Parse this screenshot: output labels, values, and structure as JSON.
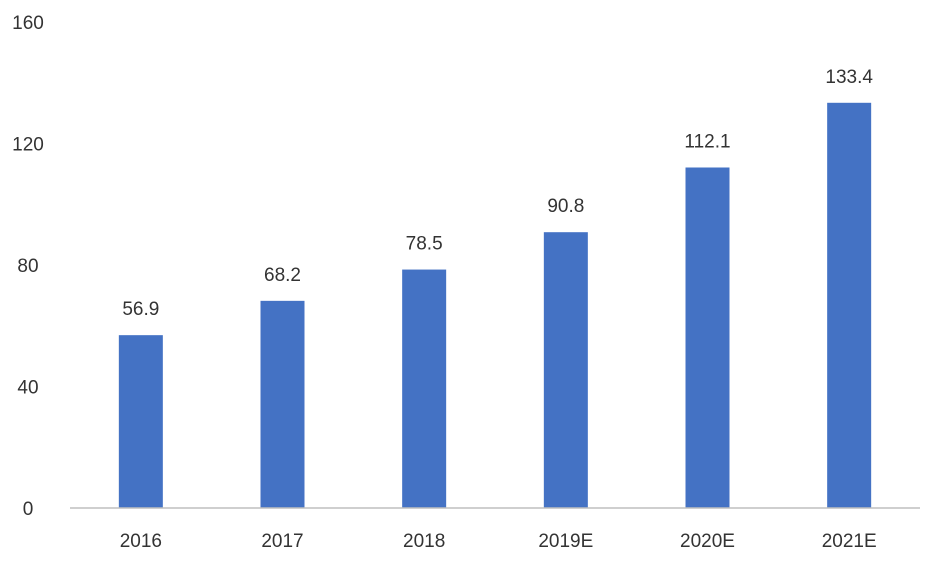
{
  "chart_data": {
    "type": "bar",
    "categories": [
      "2016",
      "2017",
      "2018",
      "2019E",
      "2020E",
      "2021E"
    ],
    "values": [
      56.9,
      68.2,
      78.5,
      90.8,
      112.1,
      133.4
    ],
    "value_labels": [
      "56.9",
      "68.2",
      "78.5",
      "90.8",
      "112.1",
      "133.4"
    ],
    "y_ticks": [
      0,
      40,
      80,
      120,
      160
    ],
    "y_tick_labels": [
      "0",
      "40",
      "80",
      "120",
      "160"
    ],
    "ylim": [
      0,
      160
    ],
    "grid": false,
    "legend": "none",
    "bar_color": "#4472C4",
    "axis_color": "#BFBFBF",
    "text_color": "#333333"
  }
}
